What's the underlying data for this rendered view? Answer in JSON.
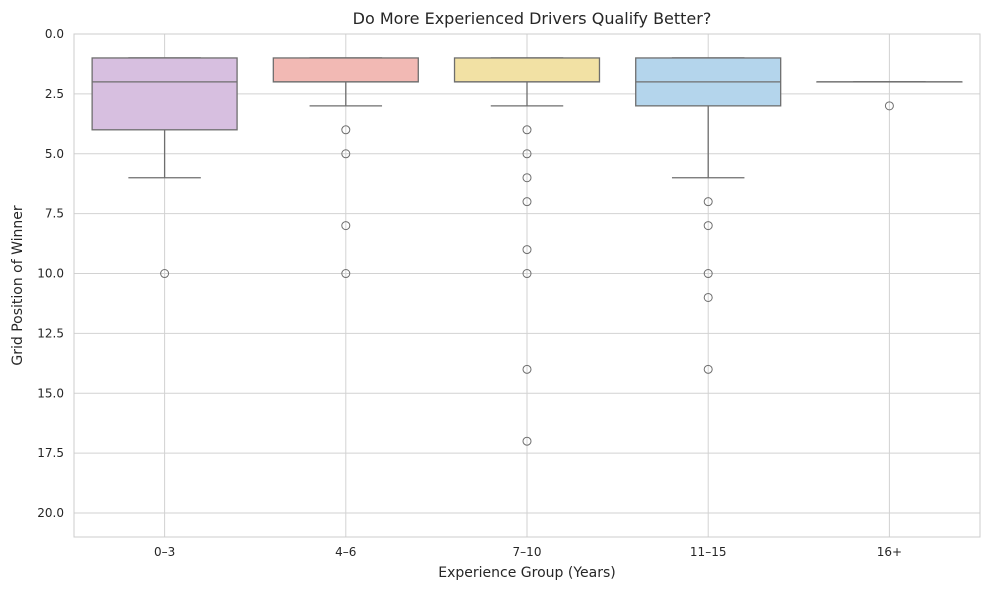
{
  "chart_data": {
    "type": "box",
    "title": "Do More Experienced Drivers Qualify Better?",
    "xlabel": "Experience Group (Years)",
    "ylabel": "Grid Position of Winner",
    "categories": [
      "0–3",
      "4–6",
      "7–10",
      "11–15",
      "16+"
    ],
    "y_inverted": true,
    "ylim": [
      0,
      21
    ],
    "yticks": [
      0.0,
      2.5,
      5.0,
      7.5,
      10.0,
      12.5,
      15.0,
      17.5,
      20.0
    ],
    "ytick_labels": [
      "0.0",
      "2.5",
      "5.0",
      "7.5",
      "10.0",
      "12.5",
      "15.0",
      "17.5",
      "20.0"
    ],
    "grid": true,
    "boxes": [
      {
        "category": "0–3",
        "whislo": 1,
        "q1": 1,
        "med": 2,
        "q3": 4,
        "whishi": 6,
        "fliers": [
          10
        ],
        "color": "#d7bfe0"
      },
      {
        "category": "4–6",
        "whislo": 1,
        "q1": 1,
        "med": 2,
        "q3": 2,
        "whishi": 3,
        "fliers": [
          4,
          5,
          8,
          10
        ],
        "color": "#f2b9b4"
      },
      {
        "category": "7–10",
        "whislo": 1,
        "q1": 1,
        "med": 2,
        "q3": 2,
        "whishi": 3,
        "fliers": [
          4,
          5,
          6,
          7,
          9,
          10,
          14,
          17
        ],
        "color": "#f2e1a4"
      },
      {
        "category": "11–15",
        "whislo": 1,
        "q1": 1,
        "med": 2,
        "q3": 3,
        "whishi": 6,
        "fliers": [
          7,
          8,
          10,
          11,
          14
        ],
        "color": "#b4d5ec"
      },
      {
        "category": "16+",
        "whislo": 2,
        "q1": 2,
        "med": 2,
        "q3": 2,
        "whishi": 2,
        "fliers": [
          3
        ],
        "color": "#f3d9ec"
      }
    ]
  }
}
